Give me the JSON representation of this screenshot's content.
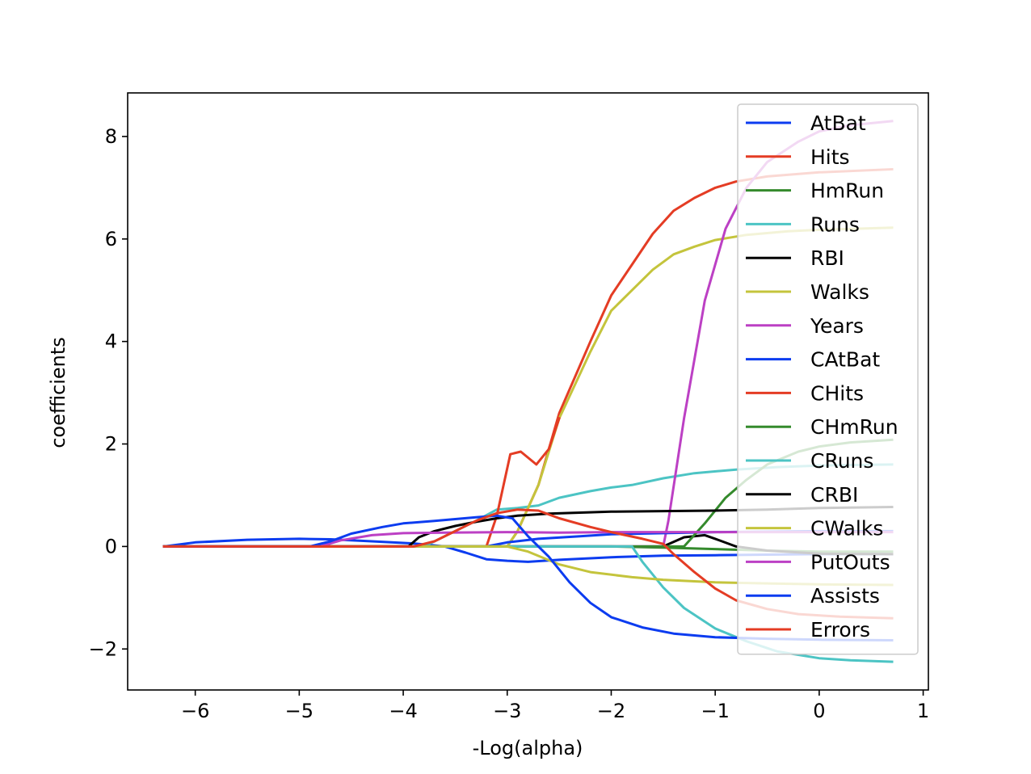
{
  "chart_data": {
    "type": "line",
    "title": "",
    "xlabel": "-Log(alpha)",
    "ylabel": "coefficients",
    "xlim": [
      -6.65,
      1.05
    ],
    "ylim": [
      -2.8,
      8.85
    ],
    "xticks": [
      -6,
      -5,
      -4,
      -3,
      -2,
      -1,
      0,
      1
    ],
    "xtick_labels": [
      "−6",
      "−5",
      "−4",
      "−3",
      "−2",
      "−1",
      "0",
      "1"
    ],
    "yticks": [
      -2,
      0,
      2,
      4,
      6,
      8
    ],
    "ytick_labels": [
      "−2",
      "0",
      "2",
      "4",
      "6",
      "8"
    ],
    "grid": false,
    "legend_position": "top-right",
    "series": [
      {
        "name": "AtBat",
        "color": "#0c3cf0",
        "points": [
          [
            -6.3,
            0
          ],
          [
            -6.0,
            0.08
          ],
          [
            -5.5,
            0.13
          ],
          [
            -5.0,
            0.15
          ],
          [
            -4.7,
            0.14
          ],
          [
            -4.3,
            0.1
          ],
          [
            -3.9,
            0.06
          ],
          [
            -3.6,
            0
          ],
          [
            -3.4,
            -0.12
          ],
          [
            -3.2,
            -0.25
          ],
          [
            -3.0,
            -0.28
          ],
          [
            -2.8,
            -0.3
          ],
          [
            -2.5,
            -0.26
          ],
          [
            -2.0,
            -0.21
          ],
          [
            -1.5,
            -0.18
          ],
          [
            -1.0,
            -0.17
          ],
          [
            -0.5,
            -0.16
          ],
          [
            0.0,
            -0.15
          ],
          [
            0.7,
            -0.15
          ]
        ]
      },
      {
        "name": "Hits",
        "color": "#e43c24",
        "points": [
          [
            -6.3,
            0
          ],
          [
            -3.0,
            0
          ],
          [
            -2.9,
            0.3
          ],
          [
            -2.7,
            1.2
          ],
          [
            -2.5,
            2.6
          ],
          [
            -2.2,
            4.0
          ],
          [
            -2.0,
            4.9
          ],
          [
            -1.8,
            5.5
          ],
          [
            -1.6,
            6.1
          ],
          [
            -1.4,
            6.55
          ],
          [
            -1.2,
            6.8
          ],
          [
            -1.0,
            7.0
          ],
          [
            -0.8,
            7.12
          ],
          [
            -0.5,
            7.22
          ],
          [
            0.0,
            7.3
          ],
          [
            0.7,
            7.36
          ]
        ]
      },
      {
        "name": "HmRun",
        "color": "#348a2c",
        "points": [
          [
            -6.3,
            0
          ],
          [
            -2.0,
            0
          ],
          [
            -1.5,
            -0.02
          ],
          [
            -1.0,
            -0.05
          ],
          [
            -0.5,
            -0.08
          ],
          [
            0.0,
            -0.1
          ],
          [
            0.7,
            -0.1
          ]
        ]
      },
      {
        "name": "Runs",
        "color": "#4cc4c4",
        "points": [
          [
            -6.3,
            0
          ],
          [
            -3.8,
            0
          ],
          [
            -3.6,
            0.2
          ],
          [
            -3.3,
            0.5
          ],
          [
            -3.1,
            0.72
          ],
          [
            -2.9,
            0.75
          ],
          [
            -2.7,
            0.8
          ],
          [
            -2.5,
            0.95
          ],
          [
            -2.2,
            1.08
          ],
          [
            -2.0,
            1.15
          ],
          [
            -1.8,
            1.2
          ],
          [
            -1.5,
            1.33
          ],
          [
            -1.2,
            1.43
          ],
          [
            -0.8,
            1.5
          ],
          [
            -0.4,
            1.55
          ],
          [
            0.0,
            1.58
          ],
          [
            0.7,
            1.6
          ]
        ]
      },
      {
        "name": "RBI",
        "color": "#000000",
        "points": [
          [
            -6.3,
            0
          ],
          [
            -1.5,
            0
          ],
          [
            -1.3,
            0.18
          ],
          [
            -1.1,
            0.22
          ],
          [
            -1.0,
            0.15
          ],
          [
            -0.8,
            0
          ],
          [
            -0.5,
            -0.08
          ],
          [
            0.0,
            -0.14
          ],
          [
            0.7,
            -0.15
          ]
        ]
      },
      {
        "name": "Walks",
        "color": "#c4c43c",
        "points": [
          [
            -6.3,
            0
          ],
          [
            -3.0,
            0
          ],
          [
            -2.9,
            0.3
          ],
          [
            -2.7,
            1.2
          ],
          [
            -2.5,
            2.5
          ],
          [
            -2.2,
            3.8
          ],
          [
            -2.0,
            4.6
          ],
          [
            -1.8,
            5.0
          ],
          [
            -1.6,
            5.4
          ],
          [
            -1.4,
            5.7
          ],
          [
            -1.2,
            5.85
          ],
          [
            -1.0,
            5.98
          ],
          [
            -0.7,
            6.08
          ],
          [
            -0.3,
            6.15
          ],
          [
            0.0,
            6.18
          ],
          [
            0.7,
            6.22
          ]
        ]
      },
      {
        "name": "Years",
        "color": "#bc40c4",
        "points": [
          [
            -6.3,
            0
          ],
          [
            -1.5,
            0
          ],
          [
            -1.45,
            0.5
          ],
          [
            -1.3,
            2.5
          ],
          [
            -1.1,
            4.8
          ],
          [
            -0.9,
            6.2
          ],
          [
            -0.7,
            7.0
          ],
          [
            -0.5,
            7.5
          ],
          [
            -0.2,
            7.9
          ],
          [
            0.0,
            8.1
          ],
          [
            0.3,
            8.22
          ],
          [
            0.7,
            8.3
          ]
        ]
      },
      {
        "name": "CAtBat",
        "color": "#0c3cf0",
        "points": [
          [
            -6.3,
            0
          ],
          [
            -3.2,
            0
          ],
          [
            -3.0,
            0.08
          ],
          [
            -2.7,
            0.15
          ],
          [
            -2.3,
            0.2
          ],
          [
            -2.0,
            0.24
          ],
          [
            -1.5,
            0.26
          ],
          [
            -1.0,
            0.28
          ],
          [
            -0.5,
            0.29
          ],
          [
            0.0,
            0.3
          ],
          [
            0.7,
            0.3
          ]
        ]
      },
      {
        "name": "CHits",
        "color": "#e43c24",
        "points": [
          [
            -6.3,
            0
          ],
          [
            -3.2,
            0
          ],
          [
            -3.1,
            0.6
          ],
          [
            -2.97,
            1.8
          ],
          [
            -2.87,
            1.85
          ],
          [
            -2.72,
            1.6
          ],
          [
            -2.6,
            1.9
          ],
          [
            -2.5,
            2.5
          ]
        ]
      },
      {
        "name": "CHmRun",
        "color": "#348a2c",
        "points": [
          [
            -6.3,
            0
          ],
          [
            -1.3,
            0
          ],
          [
            -1.1,
            0.45
          ],
          [
            -0.9,
            0.95
          ],
          [
            -0.7,
            1.3
          ],
          [
            -0.5,
            1.6
          ],
          [
            -0.2,
            1.85
          ],
          [
            0.0,
            1.95
          ],
          [
            0.3,
            2.03
          ],
          [
            0.7,
            2.08
          ]
        ]
      },
      {
        "name": "CRuns",
        "color": "#4cc4c4",
        "points": [
          [
            -6.3,
            0
          ],
          [
            -1.8,
            0
          ],
          [
            -1.7,
            -0.3
          ],
          [
            -1.5,
            -0.8
          ],
          [
            -1.3,
            -1.2
          ],
          [
            -1.0,
            -1.6
          ],
          [
            -0.7,
            -1.85
          ],
          [
            -0.4,
            -2.05
          ],
          [
            0.0,
            -2.18
          ],
          [
            0.3,
            -2.22
          ],
          [
            0.7,
            -2.25
          ]
        ]
      },
      {
        "name": "CRBI",
        "color": "#000000",
        "points": [
          [
            -6.3,
            0
          ],
          [
            -3.95,
            0
          ],
          [
            -3.85,
            0.18
          ],
          [
            -3.7,
            0.3
          ],
          [
            -3.5,
            0.4
          ],
          [
            -3.3,
            0.48
          ],
          [
            -3.1,
            0.55
          ],
          [
            -2.9,
            0.6
          ],
          [
            -2.6,
            0.64
          ],
          [
            -2.3,
            0.66
          ],
          [
            -2.0,
            0.68
          ],
          [
            -1.5,
            0.69
          ],
          [
            -1.0,
            0.7
          ],
          [
            -0.5,
            0.72
          ],
          [
            0.0,
            0.75
          ],
          [
            0.7,
            0.77
          ]
        ]
      },
      {
        "name": "CWalks",
        "color": "#c4c43c",
        "points": [
          [
            -6.3,
            0
          ],
          [
            -3.0,
            0
          ],
          [
            -2.8,
            -0.1
          ],
          [
            -2.5,
            -0.35
          ],
          [
            -2.2,
            -0.5
          ],
          [
            -1.8,
            -0.6
          ],
          [
            -1.5,
            -0.65
          ],
          [
            -1.0,
            -0.7
          ],
          [
            -0.5,
            -0.72
          ],
          [
            0.0,
            -0.74
          ],
          [
            0.7,
            -0.75
          ]
        ]
      },
      {
        "name": "PutOuts",
        "color": "#bc40c4",
        "points": [
          [
            -6.3,
            0
          ],
          [
            -4.8,
            0
          ],
          [
            -4.6,
            0.12
          ],
          [
            -4.3,
            0.22
          ],
          [
            -4.0,
            0.26
          ],
          [
            -3.6,
            0.27
          ],
          [
            -3.0,
            0.28
          ],
          [
            -2.5,
            0.27
          ],
          [
            -2.0,
            0.28
          ],
          [
            -1.5,
            0.28
          ],
          [
            -1.0,
            0.28
          ],
          [
            -0.5,
            0.28
          ],
          [
            0.0,
            0.28
          ],
          [
            0.7,
            0.28
          ]
        ]
      },
      {
        "name": "Assists",
        "color": "#0c3cf0",
        "points": [
          [
            -6.3,
            0
          ],
          [
            -4.9,
            0
          ],
          [
            -4.7,
            0.1
          ],
          [
            -4.5,
            0.25
          ],
          [
            -4.2,
            0.38
          ],
          [
            -4.0,
            0.45
          ],
          [
            -3.7,
            0.5
          ],
          [
            -3.3,
            0.57
          ],
          [
            -3.1,
            0.6
          ],
          [
            -2.95,
            0.55
          ],
          [
            -2.8,
            0.2
          ],
          [
            -2.6,
            -0.2
          ],
          [
            -2.4,
            -0.7
          ],
          [
            -2.2,
            -1.1
          ],
          [
            -2.0,
            -1.38
          ],
          [
            -1.7,
            -1.58
          ],
          [
            -1.4,
            -1.7
          ],
          [
            -1.0,
            -1.77
          ],
          [
            -0.5,
            -1.8
          ],
          [
            0.0,
            -1.82
          ],
          [
            0.7,
            -1.83
          ]
        ]
      },
      {
        "name": "Errors",
        "color": "#e43c24",
        "points": [
          [
            -6.3,
            0
          ],
          [
            -3.9,
            0
          ],
          [
            -3.7,
            0.1
          ],
          [
            -3.5,
            0.3
          ],
          [
            -3.3,
            0.5
          ],
          [
            -3.1,
            0.65
          ],
          [
            -2.9,
            0.72
          ],
          [
            -2.7,
            0.7
          ],
          [
            -2.5,
            0.55
          ],
          [
            -2.2,
            0.38
          ],
          [
            -2.0,
            0.28
          ],
          [
            -1.7,
            0.15
          ],
          [
            -1.5,
            0.05
          ],
          [
            -1.4,
            -0.15
          ],
          [
            -1.2,
            -0.5
          ],
          [
            -1.0,
            -0.82
          ],
          [
            -0.8,
            -1.05
          ],
          [
            -0.5,
            -1.22
          ],
          [
            -0.2,
            -1.32
          ],
          [
            0.2,
            -1.37
          ],
          [
            0.7,
            -1.4
          ]
        ]
      }
    ]
  }
}
